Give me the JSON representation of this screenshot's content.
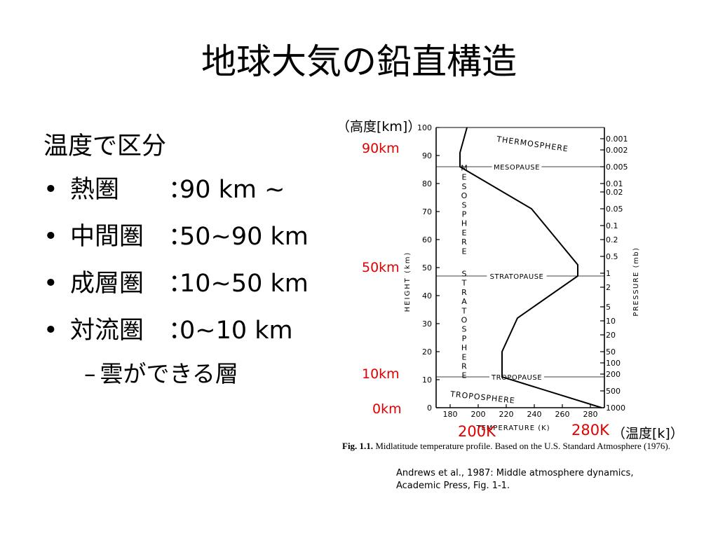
{
  "slide": {
    "title": "地球大気の鉛直構造",
    "heading": "温度で区分",
    "bullets": [
      {
        "name": "熱圏",
        "colon": "：",
        "range": "90 km ~"
      },
      {
        "name": "中間圏",
        "colon": "：",
        "range": "50~90 km"
      },
      {
        "name": "成層圏",
        "colon": "：",
        "range": "10~50 km"
      },
      {
        "name": "対流圏",
        "colon": "：",
        "range": "0~10 km"
      }
    ],
    "bullet_symbol": "•",
    "sub_dash": "–",
    "sub_bullet": "雲ができる層"
  },
  "annotations": {
    "height_unit": "（高度[km]）",
    "km90": "90km",
    "km50": "50km",
    "km10": "10km",
    "km0": "0km",
    "k200": "200K",
    "k280": "280K",
    "temp_unit": "（温度[k]）",
    "color": "#e00000"
  },
  "figure": {
    "caption_bold": "Fig. 1.1.",
    "caption_rest": "Midlatitude temperature profile. Based on the U.S. Standard Atmosphere (1976).",
    "reference_line1": "Andrews et al., 1987: Middle atmosphere dynamics,",
    "reference_line2": "Academic Press, Fig. 1-1."
  },
  "chart_data": {
    "type": "line",
    "xlabel": "TEMPERATURE (K)",
    "ylabel": "HEIGHT (km)",
    "y2label": "PRESSURE (mb)",
    "xlim": [
      170,
      290
    ],
    "ylim": [
      0,
      100
    ],
    "x_ticks": [
      180,
      200,
      220,
      240,
      260,
      280
    ],
    "y_ticks": [
      0,
      10,
      20,
      30,
      40,
      50,
      60,
      70,
      80,
      90,
      100
    ],
    "pressure_ticks": [
      {
        "label": "0.001",
        "height": 96
      },
      {
        "label": "0.002",
        "height": 92
      },
      {
        "label": "0.005",
        "height": 86
      },
      {
        "label": "0.01",
        "height": 80
      },
      {
        "label": "0.02",
        "height": 77
      },
      {
        "label": "0.05",
        "height": 71
      },
      {
        "label": "0.1",
        "height": 65
      },
      {
        "label": "0.2",
        "height": 60
      },
      {
        "label": "0.5",
        "height": 54
      },
      {
        "label": "1",
        "height": 48
      },
      {
        "label": "2",
        "height": 43
      },
      {
        "label": "5",
        "height": 36
      },
      {
        "label": "10",
        "height": 31
      },
      {
        "label": "20",
        "height": 26
      },
      {
        "label": "50",
        "height": 20
      },
      {
        "label": "100",
        "height": 16
      },
      {
        "label": "200",
        "height": 12
      },
      {
        "label": "500",
        "height": 6
      },
      {
        "label": "1000",
        "height": 0
      }
    ],
    "profile": {
      "x": [
        288,
        217,
        217,
        228,
        271,
        271,
        238,
        187,
        187,
        192
      ],
      "y": [
        0,
        11,
        20,
        32,
        47,
        51,
        71,
        86,
        91,
        100
      ]
    },
    "layers": [
      {
        "label": "THERMOSPHERE",
        "temp": 213,
        "height": 95
      },
      {
        "label": "MESOSPHERE",
        "temp": 190,
        "height": 70
      },
      {
        "label": "STRATOSPHERE",
        "temp": 190,
        "height": 29
      },
      {
        "label": "TROPOSPHERE",
        "temp": 180,
        "height": 4
      }
    ],
    "pauses": [
      {
        "label": "MESOPAUSE",
        "height": 86
      },
      {
        "label": "STRATOPAUSE",
        "height": 47
      },
      {
        "label": "TROPOPAUSE",
        "height": 11
      }
    ]
  }
}
